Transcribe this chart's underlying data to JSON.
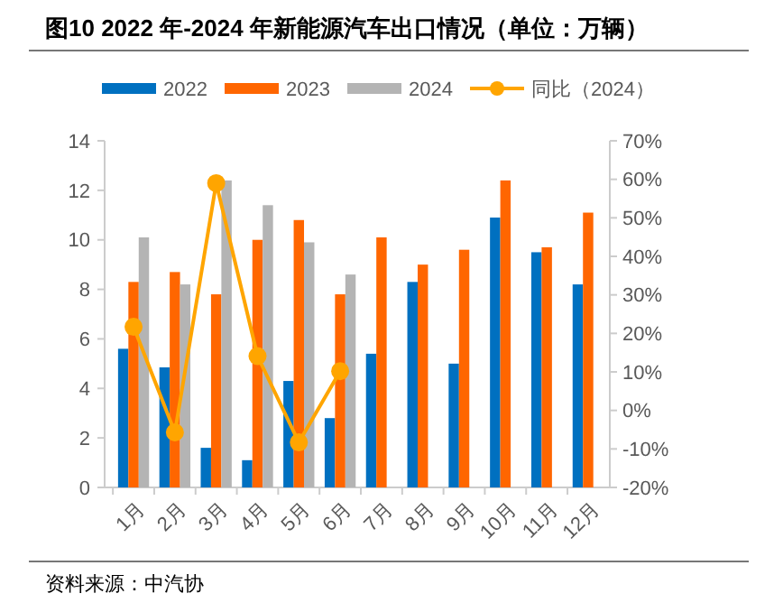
{
  "chart_data": {
    "type": "bar",
    "title": "图10 2022 年-2024 年新能源汽车出口情况（单位：万辆）",
    "categories": [
      "1月",
      "2月",
      "3月",
      "4月",
      "5月",
      "6月",
      "7月",
      "8月",
      "9月",
      "10月",
      "11月",
      "12月"
    ],
    "series": [
      {
        "name": "2022",
        "color": "#0070c0",
        "values": [
          5.6,
          4.85,
          1.6,
          1.1,
          4.3,
          2.8,
          5.4,
          8.3,
          5.0,
          10.9,
          9.5,
          8.2
        ]
      },
      {
        "name": "2023",
        "color": "#ff6600",
        "values": [
          8.3,
          8.7,
          7.8,
          10.0,
          10.8,
          7.8,
          10.1,
          9.0,
          9.6,
          12.4,
          9.7,
          11.1
        ]
      },
      {
        "name": "2024",
        "color": "#b4b4b4",
        "values": [
          10.1,
          8.2,
          12.4,
          11.4,
          9.9,
          8.6,
          null,
          null,
          null,
          null,
          null,
          null
        ]
      },
      {
        "name": "同比（2024）",
        "type": "line",
        "axis": "y2",
        "color": "#ffa500",
        "marker": "circle",
        "values": [
          21.7,
          -5.7,
          59,
          14.1,
          -8.3,
          10.2,
          null,
          null,
          null,
          null,
          null,
          null
        ]
      }
    ],
    "ylim": [
      0,
      14
    ],
    "yticks": [
      0,
      2,
      4,
      6,
      8,
      10,
      12,
      14
    ],
    "y2lim": [
      -20,
      70
    ],
    "y2ticks": [
      {
        "value": -20,
        "label": "-20%"
      },
      {
        "value": -10,
        "label": "-10%"
      },
      {
        "value": 0,
        "label": "0%"
      },
      {
        "value": 10,
        "label": "10%"
      },
      {
        "value": 20,
        "label": "20%"
      },
      {
        "value": 30,
        "label": "30%"
      },
      {
        "value": 40,
        "label": "40%"
      },
      {
        "value": 50,
        "label": "50%"
      },
      {
        "value": 60,
        "label": "60%"
      },
      {
        "value": 70,
        "label": "70%"
      }
    ],
    "legend": "top",
    "grid": false,
    "annotations": [
      "资料来源：中汽协"
    ]
  }
}
